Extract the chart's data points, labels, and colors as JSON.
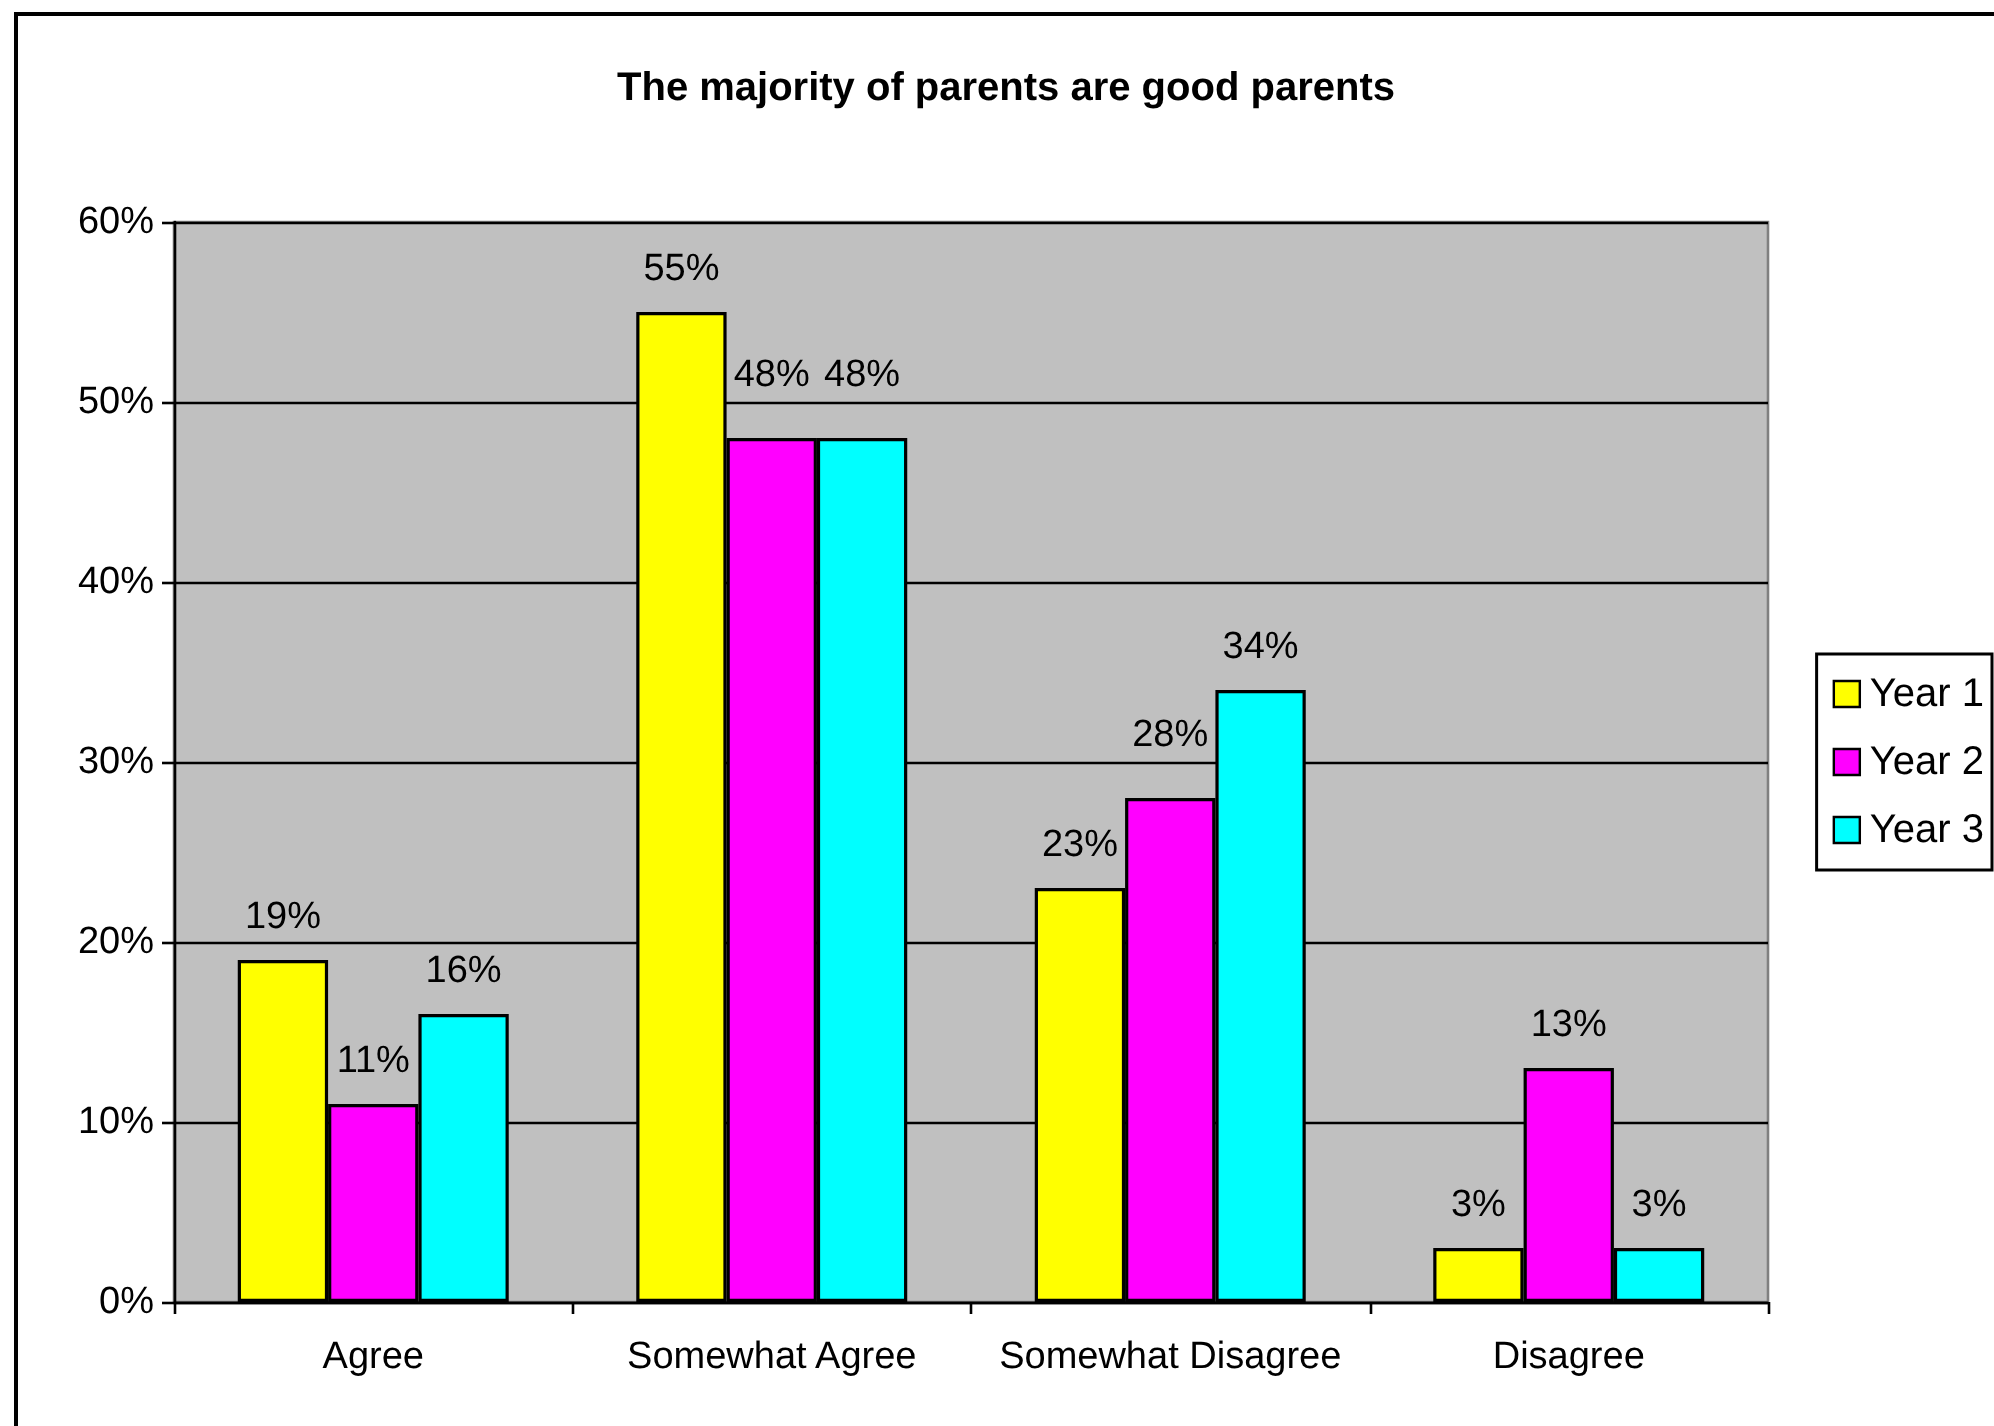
{
  "chart_data": {
    "type": "bar",
    "title": "The majority of parents are good parents",
    "categories": [
      "Agree",
      "Somewhat Agree",
      "Somewhat Disagree",
      "Disagree"
    ],
    "series": [
      {
        "name": "Year 1",
        "color": "#ffff00",
        "values": [
          19,
          55,
          23,
          3
        ],
        "value_labels": [
          "19%",
          "55%",
          "23%",
          "3%"
        ]
      },
      {
        "name": "Year 2",
        "color": "#ff00ff",
        "values": [
          11,
          48,
          28,
          13
        ],
        "value_labels": [
          "11%",
          "48%",
          "28%",
          "13%"
        ]
      },
      {
        "name": "Year 3",
        "color": "#00ffff",
        "values": [
          16,
          48,
          34,
          3
        ],
        "value_labels": [
          "16%",
          "48%",
          "34%",
          "3%"
        ]
      }
    ],
    "ylim": [
      0,
      60
    ],
    "yticks": [
      {
        "value": 0,
        "label": "0%"
      },
      {
        "value": 10,
        "label": "10%"
      },
      {
        "value": 20,
        "label": "20%"
      },
      {
        "value": 30,
        "label": "30%"
      },
      {
        "value": 40,
        "label": "40%"
      },
      {
        "value": 50,
        "label": "50%"
      },
      {
        "value": 60,
        "label": "60%"
      }
    ],
    "grid": "y",
    "legend": "right"
  }
}
